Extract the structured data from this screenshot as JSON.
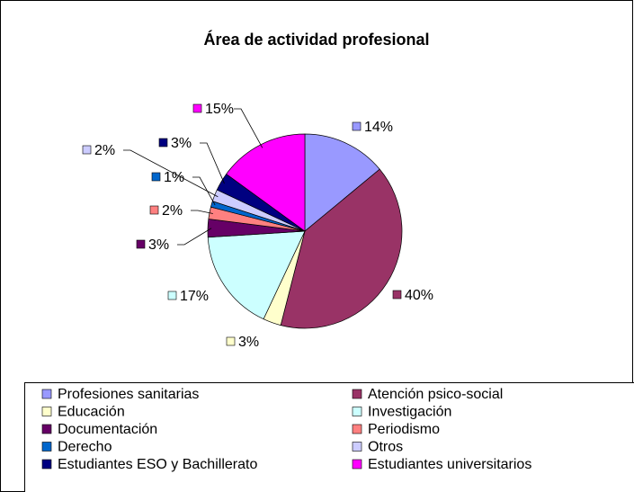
{
  "chart_data": {
    "type": "pie",
    "title": "Área de actividad profesional",
    "categories": [
      "Profesiones sanitarias",
      "Atención psico-social",
      "Educación",
      "Investigación",
      "Documentación",
      "Periodismo",
      "Derecho",
      "Otros",
      "Estudiantes ESO y Bachillerato",
      "Estudiantes universitarios"
    ],
    "values": [
      14,
      40,
      3,
      17,
      3,
      2,
      1,
      2,
      3,
      15
    ],
    "value_labels": [
      "14%",
      "40%",
      "3%",
      "17%",
      "3%",
      "2%",
      "1%",
      "2%",
      "3%",
      "15%"
    ],
    "colors": [
      "#9999FF",
      "#993366",
      "#FFFFCC",
      "#CCFFFF",
      "#660066",
      "#FF8080",
      "#0066CC",
      "#CCCCFF",
      "#000080",
      "#FF00FF"
    ],
    "legend": "bottom"
  }
}
